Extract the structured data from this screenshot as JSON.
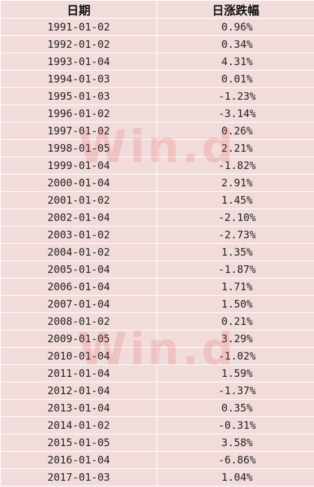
{
  "table": {
    "headers": {
      "date": "日期",
      "change": "日涨跌幅"
    },
    "rows": [
      {
        "date": "1991-01-02",
        "change": "0.96%"
      },
      {
        "date": "1992-01-02",
        "change": "0.34%"
      },
      {
        "date": "1993-01-04",
        "change": "4.31%"
      },
      {
        "date": "1994-01-03",
        "change": "0.01%"
      },
      {
        "date": "1995-01-03",
        "change": "-1.23%"
      },
      {
        "date": "1996-01-02",
        "change": "-3.14%"
      },
      {
        "date": "1997-01-02",
        "change": "0.26%"
      },
      {
        "date": "1998-01-05",
        "change": "2.21%"
      },
      {
        "date": "1999-01-04",
        "change": "-1.82%"
      },
      {
        "date": "2000-01-04",
        "change": "2.91%"
      },
      {
        "date": "2001-01-02",
        "change": "1.45%"
      },
      {
        "date": "2002-01-04",
        "change": "-2.10%"
      },
      {
        "date": "2003-01-02",
        "change": "-2.73%"
      },
      {
        "date": "2004-01-02",
        "change": "1.35%"
      },
      {
        "date": "2005-01-04",
        "change": "-1.87%"
      },
      {
        "date": "2006-01-04",
        "change": "1.71%"
      },
      {
        "date": "2007-01-04",
        "change": "1.50%"
      },
      {
        "date": "2008-01-02",
        "change": "0.21%"
      },
      {
        "date": "2009-01-05",
        "change": "3.29%"
      },
      {
        "date": "2010-01-04",
        "change": "-1.02%"
      },
      {
        "date": "2011-01-04",
        "change": "1.59%"
      },
      {
        "date": "2012-01-04",
        "change": "-1.37%"
      },
      {
        "date": "2013-01-04",
        "change": "0.35%"
      },
      {
        "date": "2014-01-02",
        "change": "-0.31%"
      },
      {
        "date": "2015-01-05",
        "change": "3.58%"
      },
      {
        "date": "2016-01-04",
        "change": "-6.86%"
      },
      {
        "date": "2017-01-03",
        "change": "1.04%"
      }
    ]
  },
  "watermark": {
    "text": "Win.d"
  },
  "colors": {
    "cell_background": "#f2dcdb",
    "grid_lines": "#ffffff",
    "watermark": "#dc5050"
  }
}
